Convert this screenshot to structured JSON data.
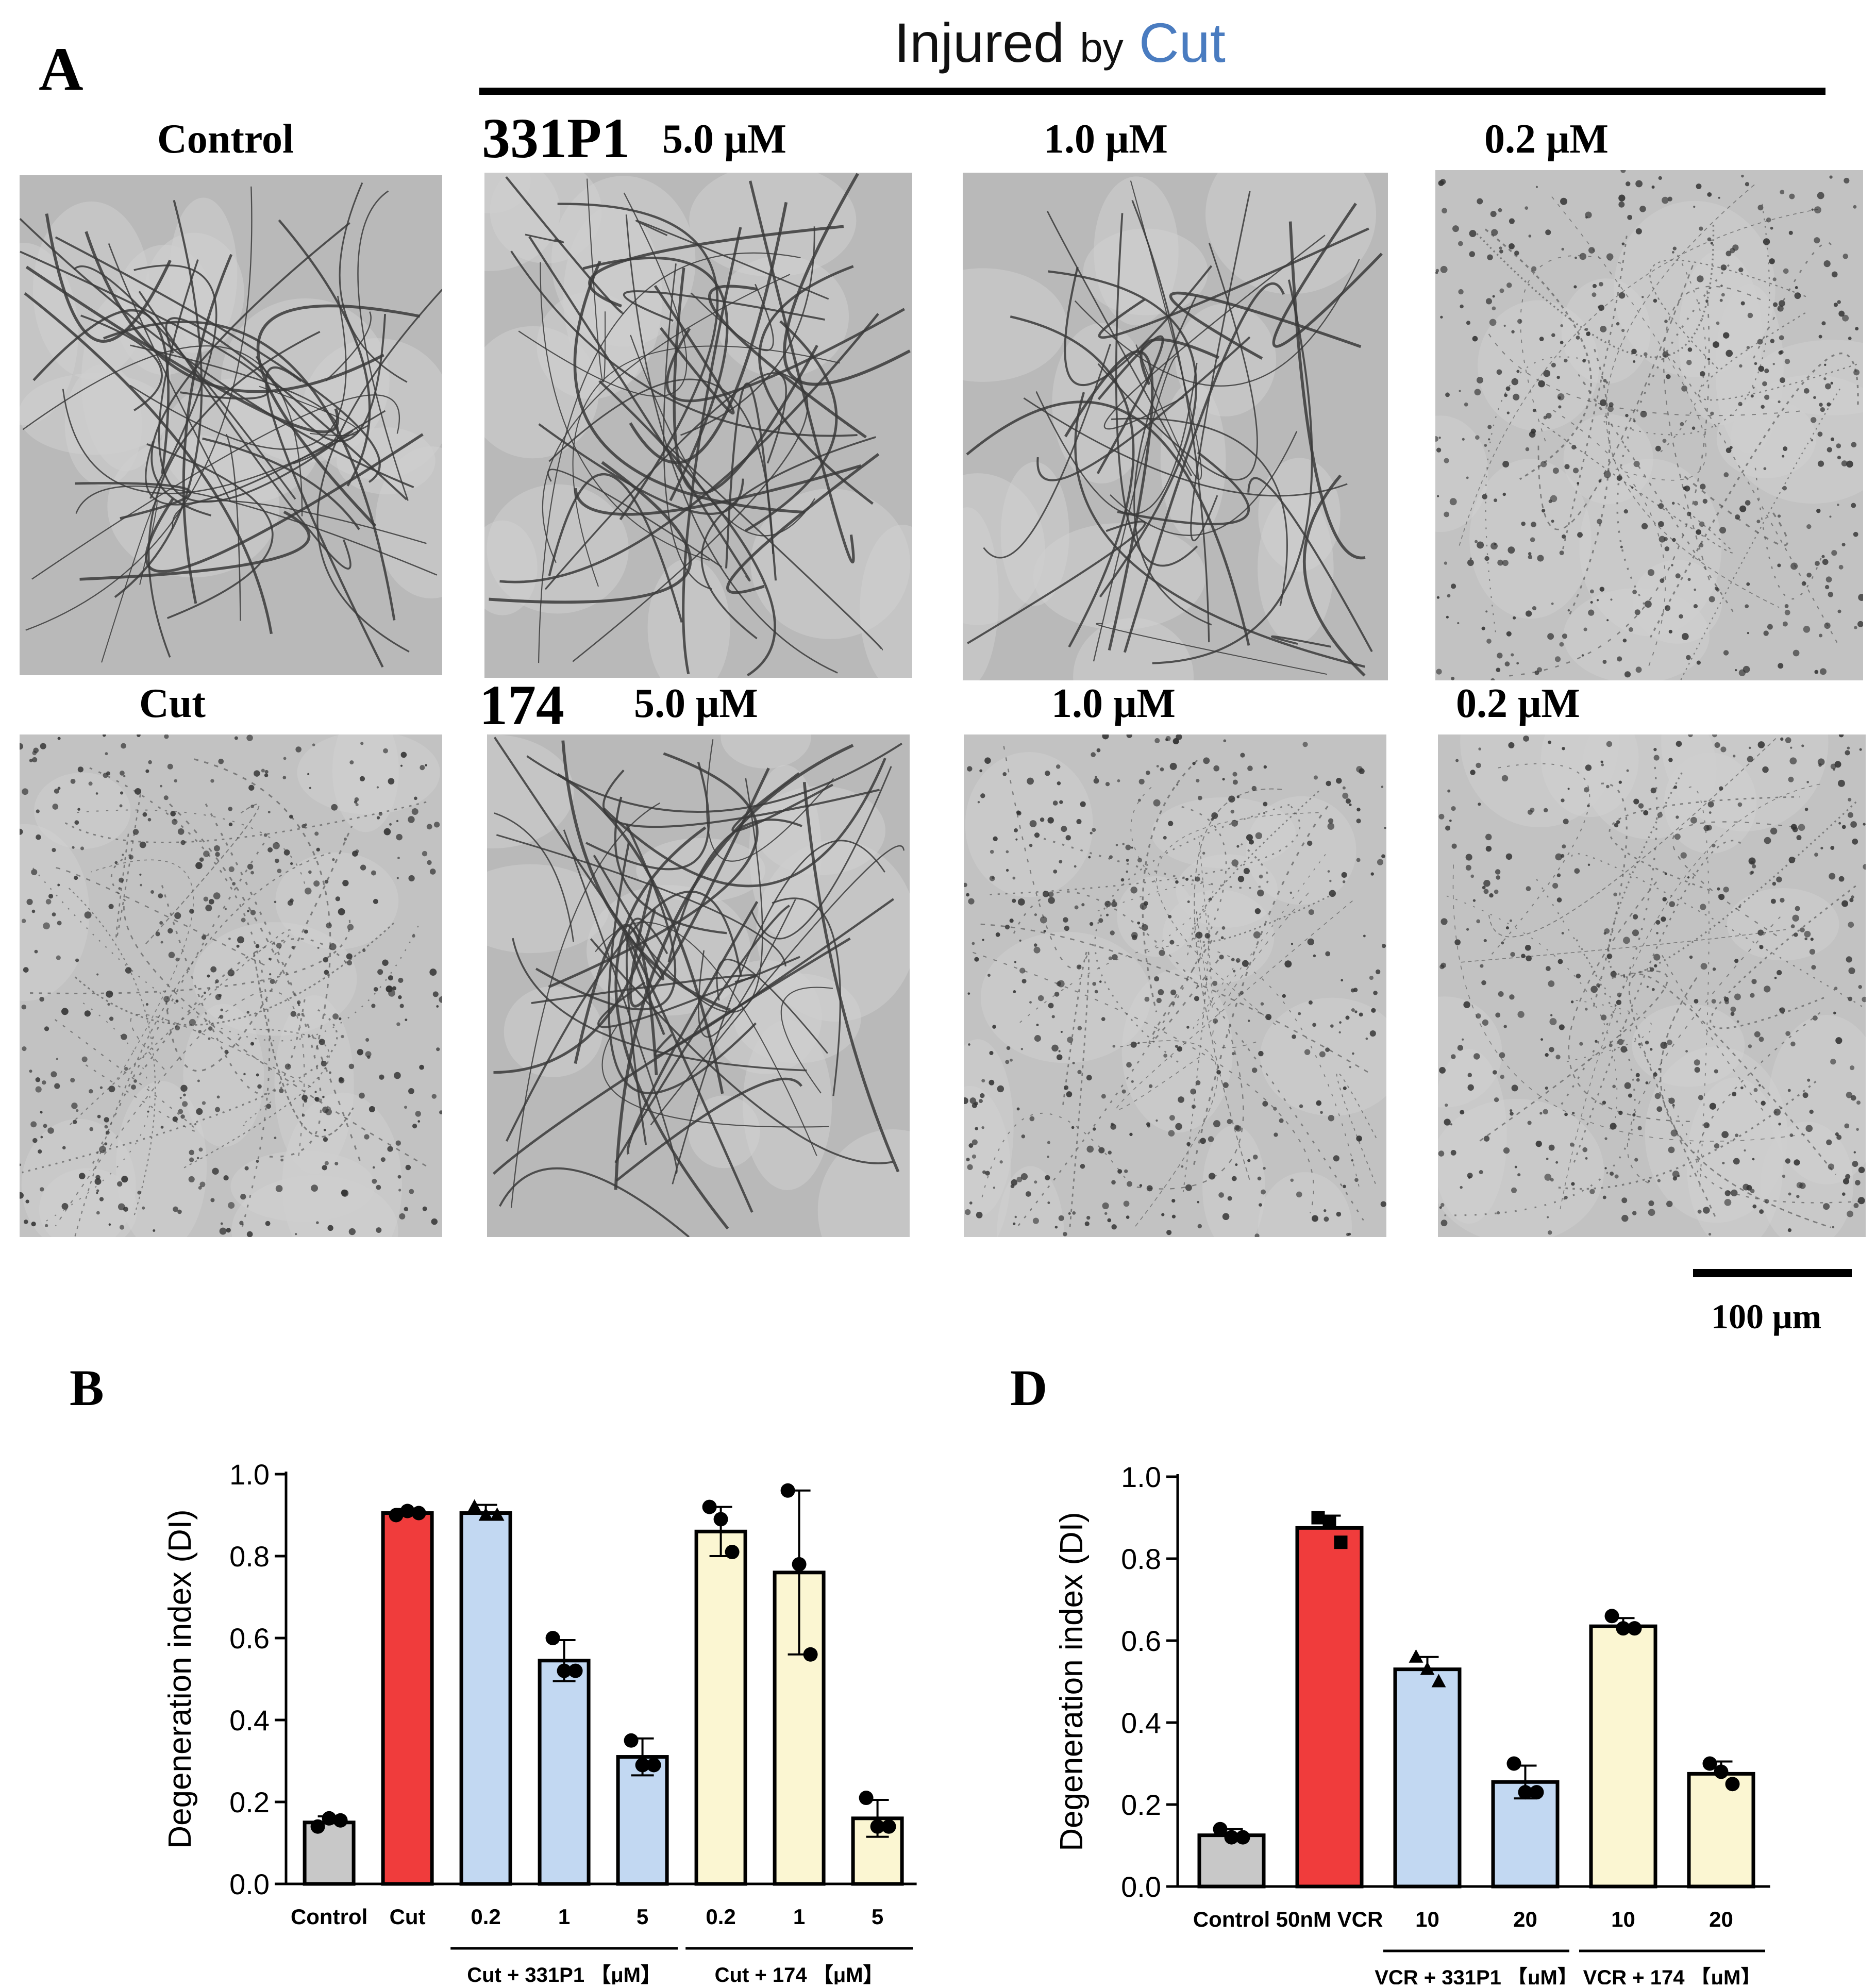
{
  "panel_a": {
    "letter": "A",
    "header": {
      "injured_text": "Injured",
      "by_text": "by",
      "cut_text": "Cut",
      "cut_color": "#4a7cc0"
    },
    "row1": {
      "control_label": "Control",
      "drug_label": "331P1",
      "conc_labels": [
        "5.0 μM",
        "1.0 μM",
        "0.2 μM"
      ]
    },
    "row2": {
      "cut_label": "Cut",
      "drug_label": "174",
      "conc_labels": [
        "5.0 μM",
        "1.0 μM",
        "0.2 μM"
      ]
    },
    "scale_bar_label": "100 μm"
  },
  "panel_b": {
    "letter": "B"
  },
  "panel_d": {
    "letter": "D"
  },
  "colors": {
    "control": "#c8c8c8",
    "injury": "#f03c3c",
    "drug_331p1": "#c2d8f2",
    "drug_174": "#fbf6d2"
  },
  "chart_data": [
    {
      "type": "bar",
      "panel": "B",
      "ylabel": "Degeneration index (DI)",
      "ylim": [
        0,
        1.0
      ],
      "yticks": [
        "0.0",
        "0.2",
        "0.4",
        "0.6",
        "0.8",
        "1.0"
      ],
      "categories": [
        "Control",
        "Cut",
        "0.2",
        "1",
        "5",
        "0.2",
        "1",
        "5"
      ],
      "group_labels": [
        {
          "text": "Cut + 331P1 【μM】",
          "from": 2,
          "to": 4
        },
        {
          "text": "Cut + 174 【μM】",
          "from": 5,
          "to": 7
        }
      ],
      "values": [
        0.15,
        0.905,
        0.905,
        0.545,
        0.31,
        0.86,
        0.76,
        0.16
      ],
      "errors": [
        0.015,
        0.01,
        0.02,
        0.05,
        0.045,
        0.06,
        0.2,
        0.045
      ],
      "points": [
        [
          0.14,
          0.16,
          0.155
        ],
        [
          0.9,
          0.91,
          0.905
        ],
        [
          0.92,
          0.9,
          0.9
        ],
        [
          0.6,
          0.52,
          0.52
        ],
        [
          0.35,
          0.29,
          0.29
        ],
        [
          0.92,
          0.89,
          0.81
        ],
        [
          0.96,
          0.78,
          0.56
        ],
        [
          0.21,
          0.14,
          0.14
        ]
      ],
      "markers": [
        "circle",
        "circle",
        "triangle",
        "circle",
        "circle",
        "circle",
        "circle",
        "circle"
      ],
      "bar_colors": [
        "control",
        "injury",
        "drug_331p1",
        "drug_331p1",
        "drug_331p1",
        "drug_174",
        "drug_174",
        "drug_174"
      ]
    },
    {
      "type": "bar",
      "panel": "D",
      "ylabel": "Degeneration index (DI)",
      "ylim": [
        0,
        1.0
      ],
      "yticks": [
        "0.0",
        "0.2",
        "0.4",
        "0.6",
        "0.8",
        "1.0"
      ],
      "categories": [
        "Control",
        "50nM VCR",
        "10",
        "20",
        "10",
        "20"
      ],
      "group_labels": [
        {
          "text": "VCR + 331P1 【μM】",
          "from": 2,
          "to": 3
        },
        {
          "text": "VCR + 174 【μM】",
          "from": 4,
          "to": 5
        }
      ],
      "values": [
        0.125,
        0.875,
        0.53,
        0.255,
        0.635,
        0.275
      ],
      "errors": [
        0.015,
        0.03,
        0.03,
        0.04,
        0.02,
        0.03
      ],
      "points": [
        [
          0.14,
          0.12,
          0.12
        ],
        [
          0.9,
          0.89,
          0.84
        ],
        [
          0.56,
          0.53,
          0.5
        ],
        [
          0.3,
          0.23,
          0.23
        ],
        [
          0.66,
          0.63,
          0.63
        ],
        [
          0.3,
          0.28,
          0.25
        ]
      ],
      "markers": [
        "circle",
        "square",
        "triangle",
        "circle",
        "circle",
        "circle"
      ],
      "bar_colors": [
        "control",
        "injury",
        "drug_331p1",
        "drug_331p1",
        "drug_174",
        "drug_174"
      ]
    }
  ]
}
